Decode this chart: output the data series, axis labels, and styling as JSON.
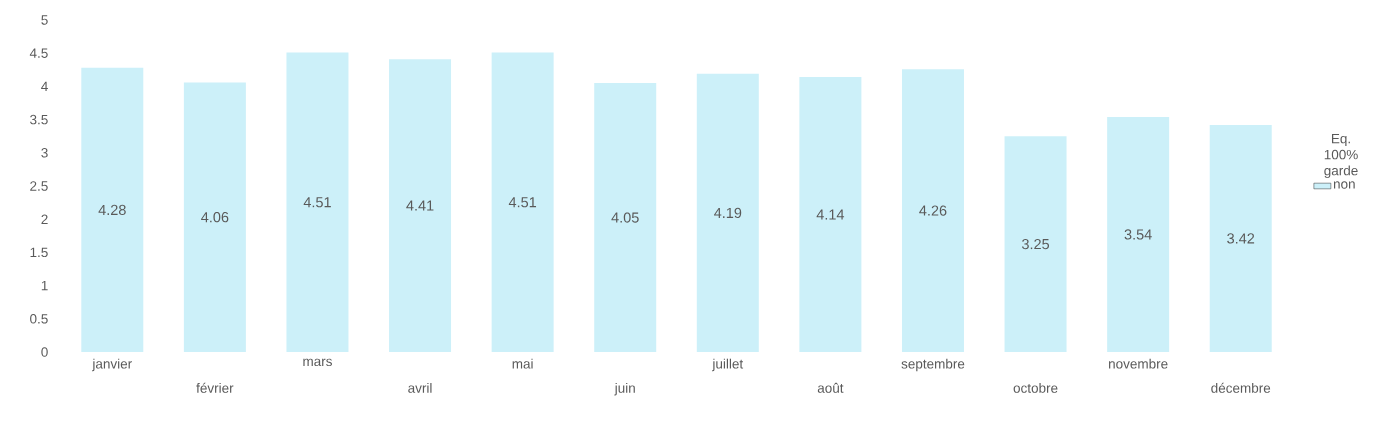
{
  "chart_data": {
    "type": "bar",
    "categories": [
      "janvier",
      "février",
      "mars",
      "avril",
      "mai",
      "juin",
      "juillet",
      "août",
      "septembre",
      "octobre",
      "novembre",
      "décembre"
    ],
    "series": [
      {
        "name": "non",
        "color": "#ccf0f9",
        "values": [
          4.28,
          4.06,
          4.51,
          4.41,
          4.51,
          4.05,
          4.19,
          4.14,
          4.26,
          3.25,
          3.54,
          3.42
        ]
      }
    ],
    "legend_title": "Eq. 100% garde",
    "legend": "right",
    "data_labels": true,
    "grid": false,
    "ylim": [
      0,
      5
    ],
    "yticks": [
      0,
      0.5,
      1,
      1.5,
      2,
      2.5,
      3,
      3.5,
      4,
      4.5,
      5
    ]
  }
}
